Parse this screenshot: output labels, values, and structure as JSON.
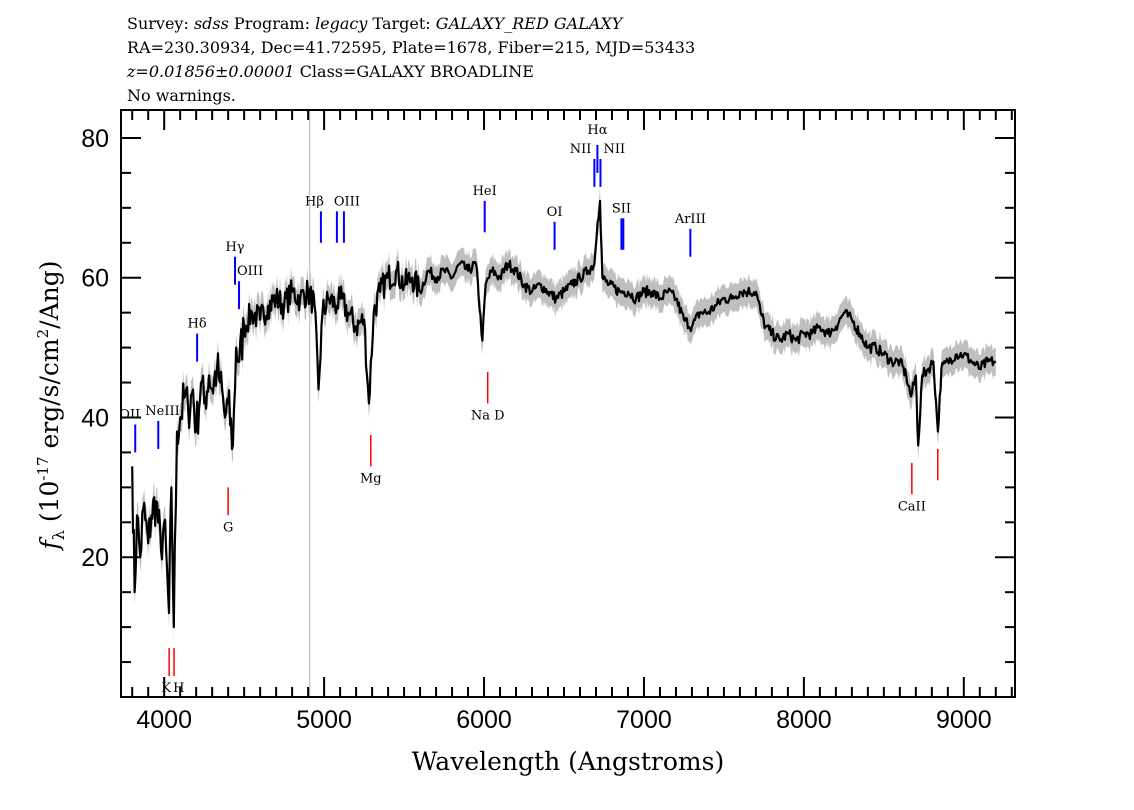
{
  "header": {
    "line1": {
      "survey_label": "Survey:",
      "survey": "sdss",
      "program_label": "Program:",
      "program": "legacy",
      "target_label": "Target:",
      "target": "GALAXY_RED GALAXY"
    },
    "line2": "RA=230.30934, Dec=41.72595, Plate=1678, Fiber=215, MJD=53433",
    "line3": {
      "redshift": "z=0.01856±0.00001",
      "class": "Class=GALAXY BROADLINE"
    },
    "line4": "No warnings."
  },
  "chart_data": {
    "type": "line",
    "xlabel": "Wavelength (Angstroms)",
    "ylabel": {
      "symbol": "f",
      "sub": "λ",
      "pre": " (10",
      "exp": "-17",
      "mid": " erg/s/cm",
      "exp2": "2",
      "post": "/Ang)"
    },
    "xlim": [
      3730,
      9320
    ],
    "ylim": [
      0,
      84
    ],
    "xticks": [
      4000,
      5000,
      6000,
      7000,
      8000,
      9000
    ],
    "xtick_labels": [
      "4000",
      "5000",
      "6000",
      "7000",
      "8000",
      "9000"
    ],
    "yticks": [
      20,
      40,
      60,
      80
    ],
    "ytick_labels": [
      "20",
      "40",
      "60",
      "80"
    ],
    "grid": false,
    "colors": {
      "flux": "#000000",
      "error_band": "#bfbfbf",
      "emission": "#0000ff",
      "absorption": "#ff0000",
      "reference_line": "#c0c0c0"
    },
    "reference_line_x": 4910,
    "series": [
      {
        "x": [
          3800,
          3815,
          3830,
          3850,
          3870,
          3900,
          3920,
          3950,
          3980,
          4000,
          4030,
          4045,
          4060,
          4080,
          4100,
          4130,
          4150,
          4180,
          4200,
          4230,
          4250,
          4280,
          4300,
          4330,
          4350,
          4380,
          4400,
          4430,
          4450,
          4470,
          4500,
          4550,
          4600,
          4650,
          4700,
          4750,
          4800,
          4850,
          4900,
          4940,
          4965,
          4990,
          5030,
          5080,
          5100,
          5150,
          5200,
          5250,
          5280,
          5310,
          5350,
          5400,
          5450,
          5500,
          5550,
          5600,
          5650,
          5700,
          5750,
          5800,
          5850,
          5900,
          5950,
          5990,
          6010,
          6050,
          6100,
          6150,
          6200,
          6250,
          6300,
          6350,
          6400,
          6450,
          6500,
          6550,
          6600,
          6650,
          6690,
          6710,
          6725,
          6740,
          6780,
          6850,
          6900,
          6950,
          7000,
          7050,
          7100,
          7150,
          7200,
          7250,
          7300,
          7350,
          7400,
          7450,
          7500,
          7550,
          7600,
          7650,
          7700,
          7730,
          7760,
          7800,
          7850,
          7900,
          7950,
          8000,
          8050,
          8100,
          8150,
          8200,
          8250,
          8300,
          8350,
          8400,
          8450,
          8500,
          8550,
          8600,
          8640,
          8670,
          8700,
          8715,
          8740,
          8780,
          8810,
          8838,
          8860,
          8900,
          8950,
          9000,
          9050,
          9100,
          9150,
          9200
        ],
        "y": [
          33,
          15,
          26,
          20,
          27,
          22,
          26,
          28,
          21,
          25,
          12,
          30,
          10,
          38,
          40,
          43,
          41,
          44,
          38,
          45,
          42,
          46,
          44,
          47,
          45,
          40,
          42,
          36,
          50,
          48,
          53,
          55,
          54,
          56,
          57,
          56,
          58,
          57,
          58,
          56,
          44,
          55,
          57,
          56,
          57,
          55,
          53,
          54,
          42,
          55,
          58,
          60,
          61,
          59,
          60,
          58,
          61,
          60,
          61,
          60,
          62,
          61,
          62,
          51,
          59,
          61,
          60,
          62,
          61,
          59,
          58,
          59,
          58,
          57,
          58,
          59,
          60,
          61,
          62,
          68,
          71,
          60,
          59,
          58,
          58,
          57,
          58,
          58,
          57,
          58,
          57,
          54,
          53,
          55,
          55,
          56,
          57,
          57,
          58,
          58,
          58,
          55,
          53,
          52,
          51,
          52,
          51,
          52,
          52,
          53,
          52,
          53,
          55,
          54,
          52,
          50,
          50,
          49,
          48,
          48,
          46,
          43,
          46,
          36,
          46,
          47,
          48,
          38,
          47,
          48,
          49,
          49,
          48,
          47,
          48,
          48
        ]
      }
    ],
    "annotations": [
      {
        "label": "OII",
        "wavelength": 3819,
        "flux": [
          35,
          39
        ],
        "kind": "emission"
      },
      {
        "label": "NeIII",
        "wavelength": 3963,
        "flux": [
          35.5,
          39.5
        ],
        "kind": "emission"
      },
      {
        "label": "K",
        "wavelength": 4031,
        "flux": [
          3,
          7
        ],
        "kind": "absorption"
      },
      {
        "label": "H",
        "wavelength": 4062,
        "flux": [
          3,
          7
        ],
        "kind": "absorption"
      },
      {
        "label": "Hδ",
        "wavelength": 4206,
        "flux": [
          48,
          52
        ],
        "kind": "emission"
      },
      {
        "label": "G",
        "wavelength": 4400,
        "flux": [
          26,
          30
        ],
        "kind": "absorption"
      },
      {
        "label": "Hγ",
        "wavelength": 4443,
        "flux": [
          59,
          63
        ],
        "kind": "emission"
      },
      {
        "label": "OIII",
        "wavelength": 4468,
        "flux": [
          55.5,
          59.5
        ],
        "kind": "emission"
      },
      {
        "label": "Hβ",
        "wavelength": 4980,
        "flux": [
          65,
          69.5
        ],
        "kind": "emission"
      },
      {
        "label": "OIII",
        "wavelength": 5080,
        "flux": [
          65,
          69.5
        ],
        "kind": "emission"
      },
      {
        "label": "",
        "wavelength": 5124,
        "flux": [
          65,
          69.5
        ],
        "kind": "emission"
      },
      {
        "label": "Mg",
        "wavelength": 5292,
        "flux": [
          33,
          37.5
        ],
        "kind": "absorption"
      },
      {
        "label": "HeI",
        "wavelength": 6004,
        "flux": [
          66.5,
          71
        ],
        "kind": "emission"
      },
      {
        "label": "Na D",
        "wavelength": 6023,
        "flux": [
          42,
          46.5
        ],
        "kind": "absorption"
      },
      {
        "label": "OI",
        "wavelength": 6441,
        "flux": [
          64,
          68
        ],
        "kind": "emission"
      },
      {
        "label": "NII",
        "wavelength": 6690,
        "flux": [
          73,
          77
        ],
        "kind": "emission"
      },
      {
        "label": "Hα",
        "wavelength": 6709,
        "flux": [
          75,
          79
        ],
        "kind": "emission"
      },
      {
        "label": "NII",
        "wavelength": 6728,
        "flux": [
          73,
          77
        ],
        "kind": "emission"
      },
      {
        "label": "SII",
        "wavelength": 6859,
        "flux": [
          64,
          68.5
        ],
        "kind": "emission"
      },
      {
        "label": "",
        "wavelength": 6871,
        "flux": [
          64,
          68.5
        ],
        "kind": "emission"
      },
      {
        "label": "ArIII",
        "wavelength": 7290,
        "flux": [
          63,
          67
        ],
        "kind": "emission"
      },
      {
        "label": "CaII",
        "wavelength": 8675,
        "flux": [
          29,
          33.5
        ],
        "kind": "absorption"
      },
      {
        "label": "",
        "wavelength": 8837,
        "flux": [
          31,
          35.5
        ],
        "kind": "absorption"
      }
    ]
  }
}
